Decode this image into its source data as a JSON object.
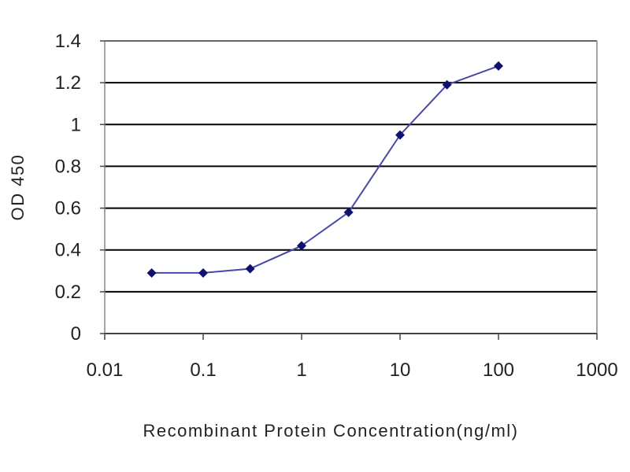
{
  "chart_data": {
    "type": "line",
    "title": "",
    "xlabel": "Recombinant  Protein Concentration(ng/ml)",
    "ylabel": "OD 450",
    "x_scale": "log",
    "xlim": [
      0.01,
      1000
    ],
    "ylim": [
      0,
      1.4
    ],
    "x_ticks": [
      0.01,
      0.1,
      1,
      10,
      100,
      1000
    ],
    "x_tick_labels": [
      "0.01",
      "0.1",
      "1",
      "10",
      "100",
      "1000"
    ],
    "y_ticks": [
      0,
      0.2,
      0.4,
      0.6,
      0.8,
      1,
      1.2,
      1.4
    ],
    "y_tick_labels": [
      "0",
      "0.2",
      "0.4",
      "0.6",
      "0.8",
      "1",
      "1.2",
      "1.4"
    ],
    "grid": "horizontal",
    "legend": "none",
    "series": [
      {
        "x": [
          0.03,
          0.1,
          0.3,
          1,
          3,
          10,
          30,
          100
        ],
        "y": [
          0.29,
          0.29,
          0.31,
          0.42,
          0.58,
          0.95,
          1.19,
          1.28
        ],
        "marker": "diamond",
        "color": "#1a1a80"
      }
    ],
    "colors": {
      "line": "#4848a8",
      "marker": "#10106e",
      "grid": "#000000",
      "frame": "#888888"
    }
  }
}
